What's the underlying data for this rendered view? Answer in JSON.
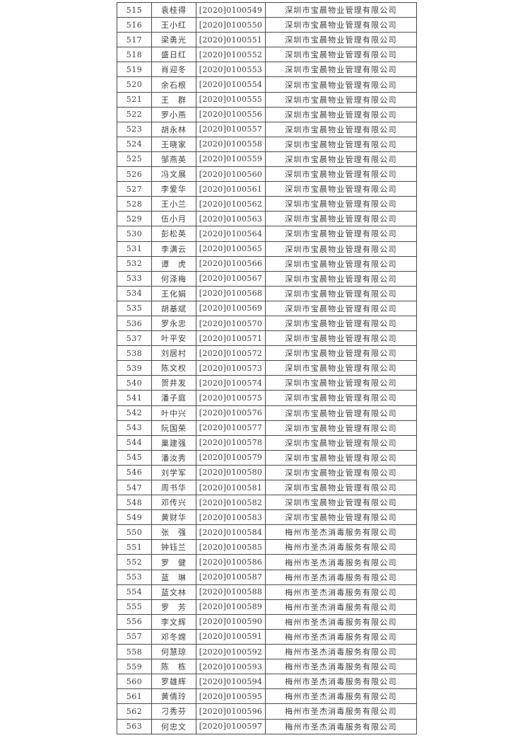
{
  "document": {
    "background_color": "#ffffff",
    "border_color": "#4a4a4a",
    "text_color": "#3f3f3f"
  },
  "table": {
    "columns": [
      "serial",
      "name",
      "code",
      "company"
    ],
    "rows": [
      {
        "serial": "515",
        "name": "袁桂得",
        "code": "[2020]0100549",
        "company": "深圳市宝晨物业管理有限公司"
      },
      {
        "serial": "516",
        "name": "王小红",
        "code": "[2020]0100550",
        "company": "深圳市宝晨物业管理有限公司"
      },
      {
        "serial": "517",
        "name": "梁勇光",
        "code": "[2020]0100551",
        "company": "深圳市宝晨物业管理有限公司"
      },
      {
        "serial": "518",
        "name": "盛日红",
        "code": "[2020]0100552",
        "company": "深圳市宝晨物业管理有限公司"
      },
      {
        "serial": "519",
        "name": "肖迎冬",
        "code": "[2020]0100553",
        "company": "深圳市宝晨物业管理有限公司"
      },
      {
        "serial": "520",
        "name": "余石根",
        "code": "[2020]0100554",
        "company": "深圳市宝晨物业管理有限公司"
      },
      {
        "serial": "521",
        "name": "王　群",
        "code": "[2020]0100555",
        "company": "深圳市宝晨物业管理有限公司"
      },
      {
        "serial": "522",
        "name": "罗小燕",
        "code": "[2020]0100556",
        "company": "深圳市宝晨物业管理有限公司"
      },
      {
        "serial": "523",
        "name": "胡永林",
        "code": "[2020]0100557",
        "company": "深圳市宝晨物业管理有限公司"
      },
      {
        "serial": "524",
        "name": "王晓家",
        "code": "[2020]0100558",
        "company": "深圳市宝晨物业管理有限公司"
      },
      {
        "serial": "525",
        "name": "邹燕英",
        "code": "[2020]0100559",
        "company": "深圳市宝晨物业管理有限公司"
      },
      {
        "serial": "526",
        "name": "冯文展",
        "code": "[2020]0100560",
        "company": "深圳市宝晨物业管理有限公司"
      },
      {
        "serial": "527",
        "name": "李爱华",
        "code": "[2020]0100561",
        "company": "深圳市宝晨物业管理有限公司"
      },
      {
        "serial": "528",
        "name": "王小兰",
        "code": "[2020]0100562",
        "company": "深圳市宝晨物业管理有限公司"
      },
      {
        "serial": "529",
        "name": "伍小月",
        "code": "[2020]0100563",
        "company": "深圳市宝晨物业管理有限公司"
      },
      {
        "serial": "530",
        "name": "彭松英",
        "code": "[2020]0100564",
        "company": "深圳市宝晨物业管理有限公司"
      },
      {
        "serial": "531",
        "name": "李满云",
        "code": "[2020]0100565",
        "company": "深圳市宝晨物业管理有限公司"
      },
      {
        "serial": "532",
        "name": "谭　虎",
        "code": "[2020]0100566",
        "company": "深圳市宝晨物业管理有限公司"
      },
      {
        "serial": "533",
        "name": "何泽梅",
        "code": "[2020]0100567",
        "company": "深圳市宝晨物业管理有限公司"
      },
      {
        "serial": "534",
        "name": "王化娟",
        "code": "[2020]0100568",
        "company": "深圳市宝晨物业管理有限公司"
      },
      {
        "serial": "535",
        "name": "胡基斌",
        "code": "[2020]0100569",
        "company": "深圳市宝晨物业管理有限公司"
      },
      {
        "serial": "536",
        "name": "罗永忠",
        "code": "[2020]0100570",
        "company": "深圳市宝晨物业管理有限公司"
      },
      {
        "serial": "537",
        "name": "叶平安",
        "code": "[2020]0100571",
        "company": "深圳市宝晨物业管理有限公司"
      },
      {
        "serial": "538",
        "name": "刘居村",
        "code": "[2020]0100572",
        "company": "深圳市宝晨物业管理有限公司"
      },
      {
        "serial": "539",
        "name": "陈文权",
        "code": "[2020]0100573",
        "company": "深圳市宝晨物业管理有限公司"
      },
      {
        "serial": "540",
        "name": "贺井发",
        "code": "[2020]0100574",
        "company": "深圳市宝晨物业管理有限公司"
      },
      {
        "serial": "541",
        "name": "潘子庭",
        "code": "[2020]0100575",
        "company": "深圳市宝晨物业管理有限公司"
      },
      {
        "serial": "542",
        "name": "叶中兴",
        "code": "[2020]0100576",
        "company": "深圳市宝晨物业管理有限公司"
      },
      {
        "serial": "543",
        "name": "阮国荣",
        "code": "[2020]0100577",
        "company": "深圳市宝晨物业管理有限公司"
      },
      {
        "serial": "544",
        "name": "巢建强",
        "code": "[2020]0100578",
        "company": "深圳市宝晨物业管理有限公司"
      },
      {
        "serial": "545",
        "name": "潘汝秀",
        "code": "[2020]0100579",
        "company": "深圳市宝晨物业管理有限公司"
      },
      {
        "serial": "546",
        "name": "刘学军",
        "code": "[2020]0100580",
        "company": "深圳市宝晨物业管理有限公司"
      },
      {
        "serial": "547",
        "name": "周书华",
        "code": "[2020]0100581",
        "company": "深圳市宝晨物业管理有限公司"
      },
      {
        "serial": "548",
        "name": "邓传兴",
        "code": "[2020]0100582",
        "company": "深圳市宝晨物业管理有限公司"
      },
      {
        "serial": "549",
        "name": "黄财华",
        "code": "[2020]0100583",
        "company": "深圳市宝晨物业管理有限公司"
      },
      {
        "serial": "550",
        "name": "张　强",
        "code": "[2020]0100584",
        "company": "梅州市圣杰消毒服务有限公司"
      },
      {
        "serial": "551",
        "name": "钟钰兰",
        "code": "[2020]0100585",
        "company": "梅州市圣杰消毒服务有限公司"
      },
      {
        "serial": "552",
        "name": "罗　健",
        "code": "[2020]0100586",
        "company": "梅州市圣杰消毒服务有限公司"
      },
      {
        "serial": "553",
        "name": "蓝　琳",
        "code": "[2020]0100587",
        "company": "梅州市圣杰消毒服务有限公司"
      },
      {
        "serial": "554",
        "name": "蓝文林",
        "code": "[2020]0100588",
        "company": "梅州市圣杰消毒服务有限公司"
      },
      {
        "serial": "555",
        "name": "罗　芳",
        "code": "[2020]0100589",
        "company": "梅州市圣杰消毒服务有限公司"
      },
      {
        "serial": "556",
        "name": "李文辉",
        "code": "[2020]0100590",
        "company": "梅州市圣杰消毒服务有限公司"
      },
      {
        "serial": "557",
        "name": "邓冬嫦",
        "code": "[2020]0100591",
        "company": "梅州市圣杰消毒服务有限公司"
      },
      {
        "serial": "558",
        "name": "何慧琼",
        "code": "[2020]0100592",
        "company": "梅州市圣杰消毒服务有限公司"
      },
      {
        "serial": "559",
        "name": "陈　栋",
        "code": "[2020]0100593",
        "company": "梅州市圣杰消毒服务有限公司"
      },
      {
        "serial": "560",
        "name": "罗雄辉",
        "code": "[2020]0100594",
        "company": "梅州市圣杰消毒服务有限公司"
      },
      {
        "serial": "561",
        "name": "黄倩玲",
        "code": "[2020]0100595",
        "company": "梅州市圣杰消毒服务有限公司"
      },
      {
        "serial": "562",
        "name": "刁秀芬",
        "code": "[2020]0100596",
        "company": "梅州市圣杰消毒服务有限公司"
      },
      {
        "serial": "563",
        "name": "何忠文",
        "code": "[2020]0100597",
        "company": "梅州市圣杰消毒服务有限公司"
      }
    ]
  }
}
